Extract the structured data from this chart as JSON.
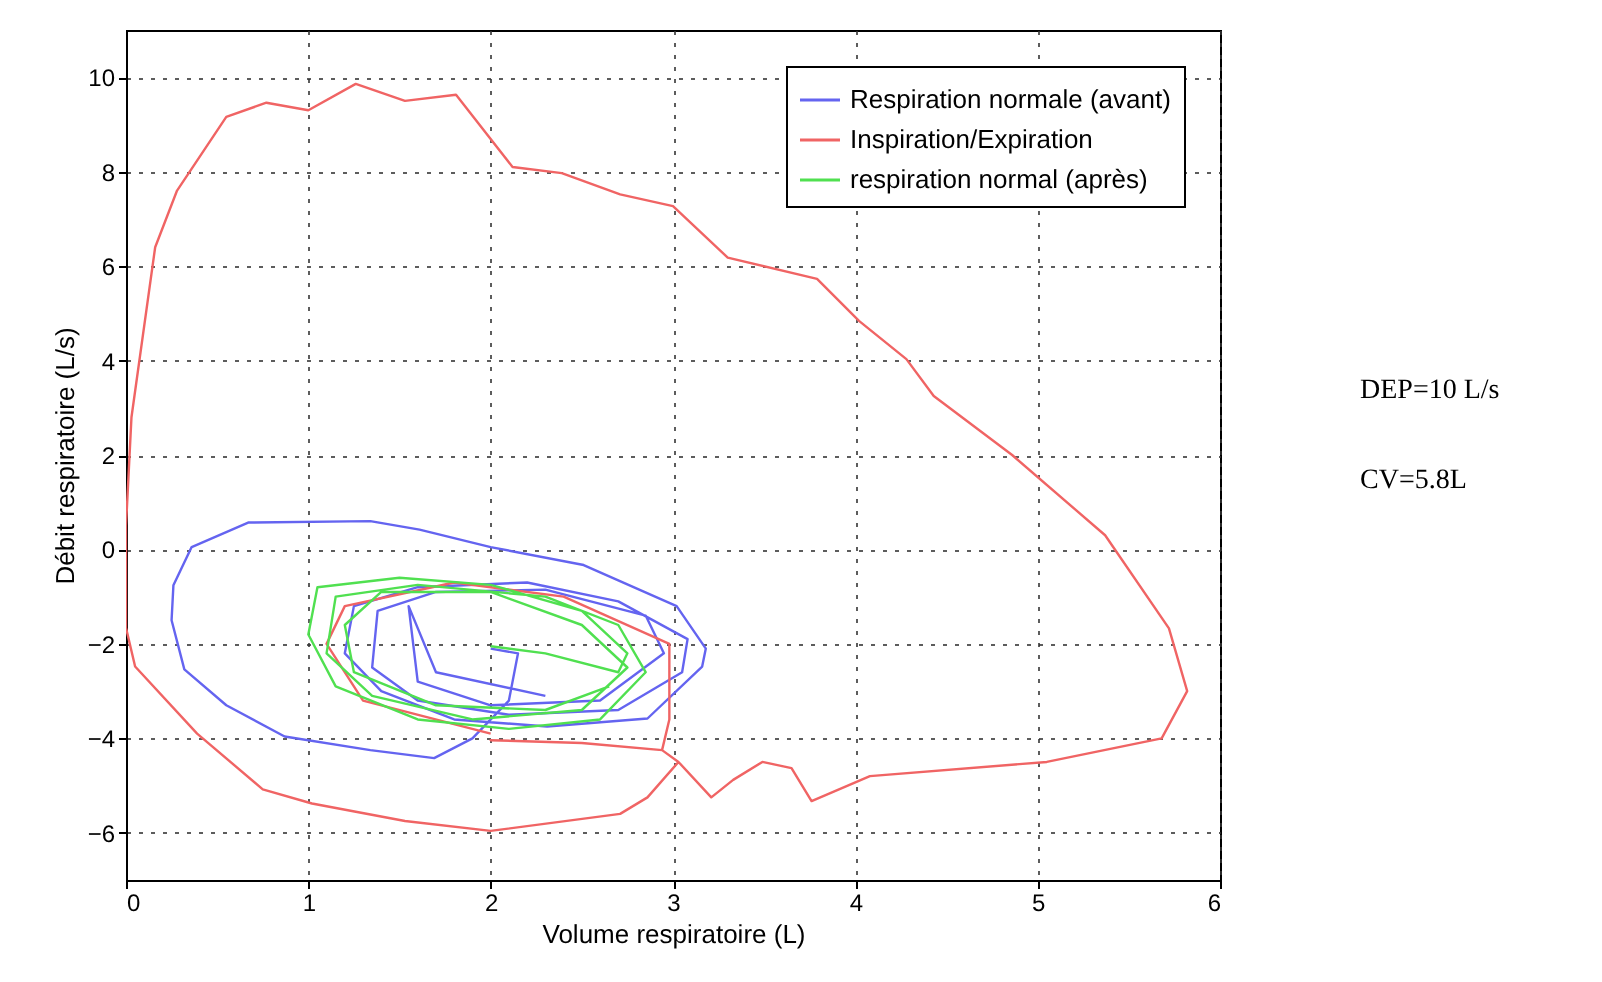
{
  "chart_data": {
    "type": "line",
    "xlabel": "Volume respiratoire (L)",
    "ylabel": "Débit respiratoire (L/s)",
    "xlim": [
      0,
      6
    ],
    "ylim": [
      -7,
      11
    ],
    "xticks": [
      0,
      1,
      2,
      3,
      4,
      5,
      6
    ],
    "yticks": [
      -6,
      -4,
      -2,
      0,
      2,
      4,
      6,
      8,
      10
    ],
    "grid": true,
    "legend": "top right",
    "marker": "none",
    "line_style": "solid",
    "annotations": [
      "DEP=10 L/s",
      "CV=5.8L"
    ],
    "series": [
      {
        "name": "Respiration normale (avant)",
        "color": "#6464f0",
        "x": [
          2.0,
          2.15,
          2.1,
          1.9,
          1.69,
          1.34,
          0.87,
          0.55,
          0.32,
          0.25,
          0.26,
          0.36,
          0.67,
          1.34,
          1.61,
          2.0,
          2.51,
          3.02,
          3.18,
          3.16,
          2.86,
          2.31,
          1.8,
          1.4,
          1.2,
          1.25,
          1.6,
          2.2,
          2.7,
          3.08,
          3.05,
          2.7,
          2.1,
          1.6,
          1.35,
          1.38,
          1.7,
          2.3,
          2.85,
          2.95,
          2.6,
          2.0,
          1.6,
          1.55,
          1.7,
          2.3
        ],
        "values": [
          -2.1,
          -2.2,
          -3.2,
          -4.0,
          -4.42,
          -4.25,
          -3.96,
          -3.3,
          -2.54,
          -1.5,
          -0.76,
          0.05,
          0.57,
          0.6,
          0.42,
          0.05,
          -0.33,
          -1.2,
          -2.1,
          -2.48,
          -3.58,
          -3.75,
          -3.6,
          -3.0,
          -2.2,
          -1.2,
          -0.8,
          -0.7,
          -1.1,
          -1.9,
          -2.6,
          -3.4,
          -3.5,
          -3.2,
          -2.5,
          -1.3,
          -0.9,
          -0.85,
          -1.4,
          -2.2,
          -3.2,
          -3.3,
          -2.8,
          -1.2,
          -2.6,
          -3.1
        ]
      },
      {
        "name": "Inspiration/Expiration",
        "color": "#f06464",
        "x": [
          2.0,
          1.3,
          1.1,
          1.2,
          1.8,
          2.4,
          2.98,
          2.98,
          2.94,
          2.5,
          2.0,
          2.5,
          2.94,
          3.03,
          3.21,
          3.33,
          3.49,
          3.65,
          3.76,
          4.08,
          5.05,
          5.68,
          5.82,
          5.72,
          5.37,
          4.86,
          4.43,
          4.28,
          4.02,
          3.79,
          3.3,
          3.0,
          2.71,
          2.39,
          2.12,
          1.81,
          1.53,
          1.26,
          1.0,
          0.77,
          0.55,
          0.28,
          0.16,
          0.03,
          0.0,
          0.0,
          0.0,
          0.05,
          0.39,
          0.75,
          1.02,
          1.53,
          2.0,
          2.71,
          2.86,
          3.03
        ],
        "values": [
          -3.9,
          -3.2,
          -2.0,
          -1.2,
          -0.7,
          -1.0,
          -2.0,
          -3.6,
          -4.25,
          -4.1,
          -4.04,
          -4.1,
          -4.25,
          -4.5,
          -5.25,
          -4.88,
          -4.5,
          -4.63,
          -5.33,
          -4.8,
          -4.5,
          -4.0,
          -3.0,
          -1.67,
          0.3,
          2.0,
          3.25,
          4.03,
          4.84,
          5.73,
          6.18,
          7.27,
          7.52,
          7.97,
          8.1,
          9.63,
          9.5,
          9.86,
          9.3,
          9.46,
          9.16,
          7.6,
          6.4,
          2.8,
          0.5,
          -1.5,
          -1.66,
          -2.48,
          -3.9,
          -5.08,
          -5.38,
          -5.75,
          -5.96,
          -5.6,
          -5.25,
          -4.5
        ]
      },
      {
        "name": "respiration normal (après)",
        "color": "#50e050",
        "x": [
          2.0,
          2.3,
          2.7,
          2.75,
          2.5,
          2.0,
          1.5,
          1.05,
          1.0,
          1.15,
          1.6,
          2.1,
          2.6,
          2.85,
          2.7,
          2.3,
          1.6,
          1.15,
          1.1,
          1.35,
          1.9,
          2.5,
          2.75,
          2.5,
          2.0,
          1.4,
          1.2,
          1.25,
          1.7,
          2.3,
          2.65
        ],
        "values": [
          -2.05,
          -2.2,
          -2.6,
          -2.2,
          -1.3,
          -0.75,
          -0.6,
          -0.8,
          -1.8,
          -2.9,
          -3.6,
          -3.8,
          -3.6,
          -2.6,
          -1.6,
          -1.0,
          -0.75,
          -1.0,
          -2.2,
          -3.1,
          -3.6,
          -3.4,
          -2.5,
          -1.6,
          -0.9,
          -0.9,
          -1.6,
          -2.6,
          -3.3,
          -3.4,
          -2.9
        ]
      }
    ]
  }
}
